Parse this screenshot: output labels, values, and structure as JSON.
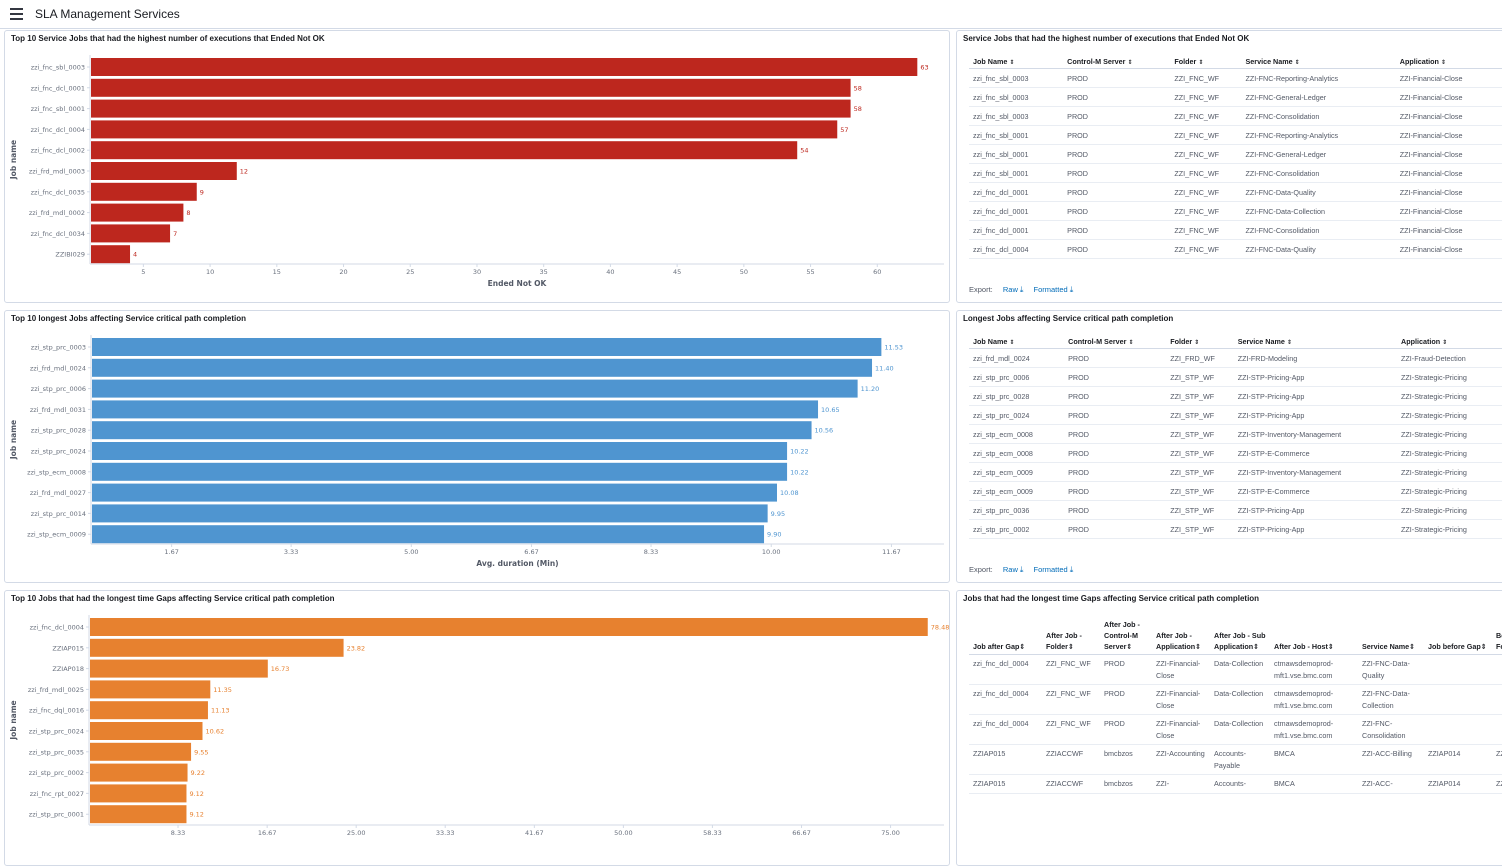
{
  "app": {
    "title": "SLA Management Services"
  },
  "colors": {
    "red": "#bd271e",
    "blue": "#4f95d0",
    "orange": "#e7812f"
  },
  "panels": {
    "p1": {
      "title": "Top 10 Service Jobs that had the highest number of executions that Ended Not OK"
    },
    "p2": {
      "title": "Service Jobs that had the highest number of executions that Ended Not OK"
    },
    "p3": {
      "title": "Top 10 longest Jobs affecting Service critical path completion"
    },
    "p4": {
      "title": "Longest Jobs affecting Service critical path completion"
    },
    "p5": {
      "title": "Top 10 Jobs that had the longest time Gaps affecting Service critical path completion"
    },
    "p6": {
      "title": "Jobs that had the longest time Gaps affecting Service critical path completion"
    }
  },
  "export": {
    "label": "Export:",
    "raw": "Raw",
    "formatted": "Formatted"
  },
  "chart_data": [
    {
      "type": "bar",
      "orientation": "horizontal",
      "title": "Top 10 Service Jobs that had the highest number of executions that Ended Not OK",
      "xlabel": "Ended Not OK",
      "ylabel": "Job name",
      "categories": [
        "zzi_fnc_sbl_0003",
        "zzi_fnc_dcl_0001",
        "zzi_fnc_sbl_0001",
        "zzi_fnc_dcl_0004",
        "zzi_fnc_dcl_0002",
        "zzi_frd_mdl_0003",
        "zzi_fnc_dcl_0035",
        "zzi_frd_mdl_0002",
        "zzi_fnc_dcl_0034",
        "ZZIBI029"
      ],
      "values": [
        63,
        58,
        58,
        57,
        54,
        12,
        9,
        8,
        7,
        4
      ],
      "value_labels": [
        "63",
        "58",
        "58",
        "57",
        "54",
        "12",
        "9",
        "8",
        "7",
        "4"
      ],
      "xlim": [
        1,
        65
      ],
      "ticks": [
        5,
        10,
        15,
        20,
        25,
        30,
        35,
        40,
        45,
        50,
        55,
        60
      ],
      "tick_labels": [
        "5",
        "10",
        "15",
        "20",
        "25",
        "30",
        "35",
        "40",
        "45",
        "50",
        "55",
        "60"
      ],
      "color": "#bd271e"
    },
    {
      "type": "bar",
      "orientation": "horizontal",
      "title": "Top 10 longest Jobs affecting Service critical path completion",
      "xlabel": "Avg. duration (Min)",
      "ylabel": "Job name",
      "categories": [
        "zzi_stp_prc_0003",
        "zzi_frd_mdl_0024",
        "zzi_stp_prc_0006",
        "zzi_frd_mdl_0031",
        "zzi_stp_prc_0028",
        "zzi_stp_prc_0024",
        "zzi_stp_ecm_0008",
        "zzi_frd_mdl_0027",
        "zzi_stp_prc_0014",
        "zzi_stp_ecm_0009"
      ],
      "values": [
        11.53,
        11.4,
        11.2,
        10.65,
        10.56,
        10.22,
        10.22,
        10.08,
        9.95,
        9.9
      ],
      "value_labels": [
        "11.53",
        "11.40",
        "11.20",
        "10.65",
        "10.56",
        "10.22",
        "10.22",
        "10.08",
        "9.95",
        "9.90"
      ],
      "xlim": [
        0.55,
        12.4
      ],
      "ticks": [
        1.67,
        3.33,
        5.0,
        6.67,
        8.33,
        10.0,
        11.67
      ],
      "tick_labels": [
        "1.67",
        "3.33",
        "5.00",
        "6.67",
        "8.33",
        "10.00",
        "11.67"
      ],
      "color": "#4f95d0"
    },
    {
      "type": "bar",
      "orientation": "horizontal",
      "title": "Top 10 Jobs that had the longest time Gaps affecting Service critical path completion",
      "xlabel": "",
      "ylabel": "Job name",
      "categories": [
        "zzi_fnc_dcl_0004",
        "ZZIAP015",
        "ZZIAP018",
        "zzi_frd_mdl_0025",
        "zzi_fnc_dql_0016",
        "zzi_stp_prc_0024",
        "zzi_stp_prc_0035",
        "zzi_stp_prc_0002",
        "zzi_fnc_rpt_0027",
        "zzi_stp_prc_0001"
      ],
      "values": [
        78.48,
        23.82,
        16.73,
        11.35,
        11.13,
        10.62,
        9.55,
        9.22,
        9.12,
        9.12
      ],
      "value_labels": [
        "78.48",
        "23.82",
        "16.73",
        "11.35",
        "11.13",
        "10.62",
        "9.55",
        "9.22",
        "9.12",
        "9.12"
      ],
      "xlim": [
        0,
        80
      ],
      "ticks": [
        8.33,
        16.67,
        25.0,
        33.33,
        41.67,
        50.0,
        58.33,
        66.67,
        75.0
      ],
      "tick_labels": [
        "8.33",
        "16.67",
        "25.00",
        "33.33",
        "41.67",
        "50.00",
        "58.33",
        "66.67",
        "75.00"
      ],
      "color": "#e7812f"
    }
  ],
  "tables": {
    "notok": {
      "headers": [
        "Job Name",
        "Control-M Server",
        "Folder",
        "Service Name",
        "Application"
      ],
      "rows": [
        [
          "zzi_fnc_sbl_0003",
          "PROD",
          "ZZI_FNC_WF",
          "ZZI-FNC-Reporting-Analytics",
          "ZZI-Financial-Close"
        ],
        [
          "zzi_fnc_sbl_0003",
          "PROD",
          "ZZI_FNC_WF",
          "ZZI-FNC-General-Ledger",
          "ZZI-Financial-Close"
        ],
        [
          "zzi_fnc_sbl_0003",
          "PROD",
          "ZZI_FNC_WF",
          "ZZI-FNC-Consolidation",
          "ZZI-Financial-Close"
        ],
        [
          "zzi_fnc_sbl_0001",
          "PROD",
          "ZZI_FNC_WF",
          "ZZI-FNC-Reporting-Analytics",
          "ZZI-Financial-Close"
        ],
        [
          "zzi_fnc_sbl_0001",
          "PROD",
          "ZZI_FNC_WF",
          "ZZI-FNC-General-Ledger",
          "ZZI-Financial-Close"
        ],
        [
          "zzi_fnc_sbl_0001",
          "PROD",
          "ZZI_FNC_WF",
          "ZZI-FNC-Consolidation",
          "ZZI-Financial-Close"
        ],
        [
          "zzi_fnc_dcl_0001",
          "PROD",
          "ZZI_FNC_WF",
          "ZZI-FNC-Data-Quality",
          "ZZI-Financial-Close"
        ],
        [
          "zzi_fnc_dcl_0001",
          "PROD",
          "ZZI_FNC_WF",
          "ZZI-FNC-Data-Collection",
          "ZZI-Financial-Close"
        ],
        [
          "zzi_fnc_dcl_0001",
          "PROD",
          "ZZI_FNC_WF",
          "ZZI-FNC-Consolidation",
          "ZZI-Financial-Close"
        ],
        [
          "zzi_fnc_dcl_0004",
          "PROD",
          "ZZI_FNC_WF",
          "ZZI-FNC-Data-Quality",
          "ZZI-Financial-Close"
        ]
      ]
    },
    "longest": {
      "headers": [
        "Job Name",
        "Control-M Server",
        "Folder",
        "Service Name",
        "Application"
      ],
      "rows": [
        [
          "zzi_frd_mdl_0024",
          "PROD",
          "ZZI_FRD_WF",
          "ZZI-FRD-Modeling",
          "ZZI-Fraud-Detection"
        ],
        [
          "zzi_stp_prc_0006",
          "PROD",
          "ZZI_STP_WF",
          "ZZI-STP-Pricing-App",
          "ZZI-Strategic-Pricing"
        ],
        [
          "zzi_stp_prc_0028",
          "PROD",
          "ZZI_STP_WF",
          "ZZI-STP-Pricing-App",
          "ZZI-Strategic-Pricing"
        ],
        [
          "zzi_stp_prc_0024",
          "PROD",
          "ZZI_STP_WF",
          "ZZI-STP-Pricing-App",
          "ZZI-Strategic-Pricing"
        ],
        [
          "zzi_stp_ecm_0008",
          "PROD",
          "ZZI_STP_WF",
          "ZZI-STP-Inventory-Management",
          "ZZI-Strategic-Pricing"
        ],
        [
          "zzi_stp_ecm_0008",
          "PROD",
          "ZZI_STP_WF",
          "ZZI-STP-E-Commerce",
          "ZZI-Strategic-Pricing"
        ],
        [
          "zzi_stp_ecm_0009",
          "PROD",
          "ZZI_STP_WF",
          "ZZI-STP-Inventory-Management",
          "ZZI-Strategic-Pricing"
        ],
        [
          "zzi_stp_ecm_0009",
          "PROD",
          "ZZI_STP_WF",
          "ZZI-STP-E-Commerce",
          "ZZI-Strategic-Pricing"
        ],
        [
          "zzi_stp_prc_0036",
          "PROD",
          "ZZI_STP_WF",
          "ZZI-STP-Pricing-App",
          "ZZI-Strategic-Pricing"
        ],
        [
          "zzi_stp_prc_0002",
          "PROD",
          "ZZI_STP_WF",
          "ZZI-STP-Pricing-App",
          "ZZI-Strategic-Pricing"
        ]
      ]
    },
    "gaps": {
      "headers": [
        "Job after Gap",
        "After Job - Folder",
        "After Job - Control-M Server",
        "After Job - Application",
        "After Job - Sub Application",
        "After Job - Host",
        "Service Name",
        "Job before Gap",
        "Be Fo"
      ],
      "rows": [
        [
          "zzi_fnc_dcl_0004",
          "ZZI_FNC_WF",
          "PROD",
          "ZZI-Financial-Close",
          "Data-Collection",
          "ctmawsdemoprod-mft1.vse.bmc.com",
          "ZZI-FNC-Data-Quality",
          "",
          ""
        ],
        [
          "zzi_fnc_dcl_0004",
          "ZZI_FNC_WF",
          "PROD",
          "ZZI-Financial-Close",
          "Data-Collection",
          "ctmawsdemoprod-mft1.vse.bmc.com",
          "ZZI-FNC-Data-Collection",
          "",
          ""
        ],
        [
          "zzi_fnc_dcl_0004",
          "ZZI_FNC_WF",
          "PROD",
          "ZZI-Financial-Close",
          "Data-Collection",
          "ctmawsdemoprod-mft1.vse.bmc.com",
          "ZZI-FNC-Consolidation",
          "",
          ""
        ],
        [
          "ZZIAP015",
          "ZZIACCWF",
          "bmcbzos",
          "ZZI-Accounting",
          "Accounts-Payable",
          "BMCA",
          "ZZI-ACC-Billing",
          "ZZIAP014",
          "ZZ"
        ],
        [
          "ZZIAP015",
          "ZZIACCWF",
          "bmcbzos",
          "ZZI-",
          "Accounts-",
          "BMCA",
          "ZZI-ACC-",
          "ZZIAP014",
          "ZZ"
        ]
      ]
    }
  }
}
